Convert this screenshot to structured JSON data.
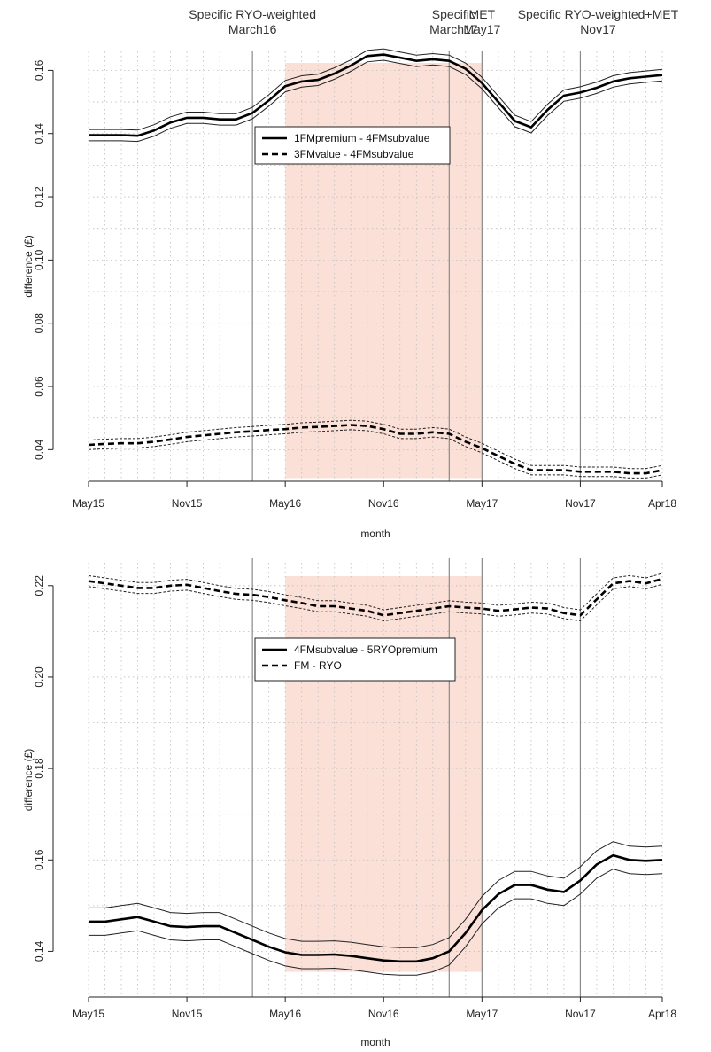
{
  "events": [
    {
      "label_lines": [
        "Specific RYO-weighted",
        "March16"
      ],
      "date": "2016-03"
    },
    {
      "label_lines": [
        "Specific",
        "March17"
      ],
      "date": "2017-03"
    },
    {
      "label_lines": [
        "MET",
        "May17"
      ],
      "date": "2017-05"
    },
    {
      "label_lines": [
        "Specific RYO-weighted+MET",
        "Nov17"
      ],
      "date": "2017-11"
    }
  ],
  "chart_data": [
    {
      "type": "line",
      "xlabel": "month",
      "ylabel": "difference (£)",
      "x_tick_labels": [
        "May15",
        "Nov15",
        "May16",
        "Nov16",
        "May17",
        "Nov17",
        "Apr18"
      ],
      "x_range": [
        "2015-05",
        "2018-04"
      ],
      "y_ticks": [
        "0.04",
        "0.06",
        "0.08",
        "0.10",
        "0.12",
        "0.14",
        "0.16"
      ],
      "ylim": [
        0.03,
        0.166
      ],
      "shaded_period": [
        "2016-05",
        "2017-05"
      ],
      "shade_color": "#fbe0d8",
      "grid": true,
      "legend_position": "top-center",
      "x": [
        "2015-05",
        "2015-06",
        "2015-07",
        "2015-08",
        "2015-09",
        "2015-10",
        "2015-11",
        "2015-12",
        "2016-01",
        "2016-02",
        "2016-03",
        "2016-04",
        "2016-05",
        "2016-06",
        "2016-07",
        "2016-08",
        "2016-09",
        "2016-10",
        "2016-11",
        "2016-12",
        "2017-01",
        "2017-02",
        "2017-03",
        "2017-04",
        "2017-05",
        "2017-06",
        "2017-07",
        "2017-08",
        "2017-09",
        "2017-10",
        "2017-11",
        "2017-12",
        "2018-01",
        "2018-02",
        "2018-03",
        "2018-04"
      ],
      "series": [
        {
          "name": "1FMpremium - 4FMsubvalue",
          "style": "solid",
          "values": [
            0.1395,
            0.1395,
            0.1395,
            0.1393,
            0.141,
            0.1435,
            0.145,
            0.145,
            0.1445,
            0.1445,
            0.1465,
            0.1505,
            0.155,
            0.1565,
            0.157,
            0.159,
            0.1615,
            0.1645,
            0.165,
            0.164,
            0.163,
            0.1635,
            0.163,
            0.1605,
            0.156,
            0.15,
            0.144,
            0.142,
            0.1475,
            0.152,
            0.153,
            0.1545,
            0.1565,
            0.1575,
            0.158,
            0.1585
          ],
          "band": 0.0018
        },
        {
          "name": "3FMvalue - 4FMsubvalue",
          "style": "dashed",
          "values": [
            0.0415,
            0.0418,
            0.042,
            0.042,
            0.0425,
            0.0432,
            0.044,
            0.0445,
            0.045,
            0.0455,
            0.0458,
            0.0462,
            0.0465,
            0.047,
            0.0472,
            0.0475,
            0.0478,
            0.0475,
            0.0465,
            0.045,
            0.045,
            0.0455,
            0.045,
            0.0425,
            0.0405,
            0.038,
            0.0355,
            0.0335,
            0.0335,
            0.0335,
            0.033,
            0.033,
            0.033,
            0.0325,
            0.0325,
            0.0335
          ],
          "band": 0.0015
        }
      ]
    },
    {
      "type": "line",
      "xlabel": "month",
      "ylabel": "difference (£)",
      "x_tick_labels": [
        "May15",
        "Nov15",
        "May16",
        "Nov16",
        "May17",
        "Nov17",
        "Apr18"
      ],
      "x_range": [
        "2015-05",
        "2018-04"
      ],
      "y_ticks": [
        "0.14",
        "0.16",
        "0.18",
        "0.20",
        "0.22"
      ],
      "ylim": [
        0.13,
        0.225
      ],
      "shaded_period": [
        "2016-05",
        "2017-05"
      ],
      "shade_color": "#fbe0d8",
      "grid": true,
      "legend_position": "top-center",
      "x": [
        "2015-05",
        "2015-06",
        "2015-07",
        "2015-08",
        "2015-09",
        "2015-10",
        "2015-11",
        "2015-12",
        "2016-01",
        "2016-02",
        "2016-03",
        "2016-04",
        "2016-05",
        "2016-06",
        "2016-07",
        "2016-08",
        "2016-09",
        "2016-10",
        "2016-11",
        "2016-12",
        "2017-01",
        "2017-02",
        "2017-03",
        "2017-04",
        "2017-05",
        "2017-06",
        "2017-07",
        "2017-08",
        "2017-09",
        "2017-10",
        "2017-11",
        "2017-12",
        "2018-01",
        "2018-02",
        "2018-03",
        "2018-04"
      ],
      "series": [
        {
          "name": "4FMsubvalue - 5RYOpremium",
          "style": "solid",
          "values": [
            0.1465,
            0.1465,
            0.147,
            0.1475,
            0.1465,
            0.1455,
            0.1453,
            0.1455,
            0.1455,
            0.144,
            0.1425,
            0.141,
            0.1398,
            0.1392,
            0.1392,
            0.1393,
            0.139,
            0.1385,
            0.138,
            0.1378,
            0.1378,
            0.1385,
            0.14,
            0.144,
            0.149,
            0.1525,
            0.1545,
            0.1545,
            0.1535,
            0.153,
            0.1555,
            0.159,
            0.161,
            0.16,
            0.1598,
            0.16
          ],
          "band": 0.003
        },
        {
          "name": "FM - RYO",
          "style": "dashed",
          "values": [
            0.221,
            0.2205,
            0.22,
            0.2195,
            0.2195,
            0.22,
            0.2202,
            0.2195,
            0.2188,
            0.2182,
            0.218,
            0.2175,
            0.2168,
            0.2162,
            0.2155,
            0.2155,
            0.215,
            0.2145,
            0.2135,
            0.214,
            0.2145,
            0.215,
            0.2155,
            0.2152,
            0.215,
            0.2145,
            0.2148,
            0.2152,
            0.215,
            0.214,
            0.2135,
            0.217,
            0.2205,
            0.221,
            0.2205,
            0.2215
          ],
          "band": 0.0012
        }
      ]
    }
  ]
}
